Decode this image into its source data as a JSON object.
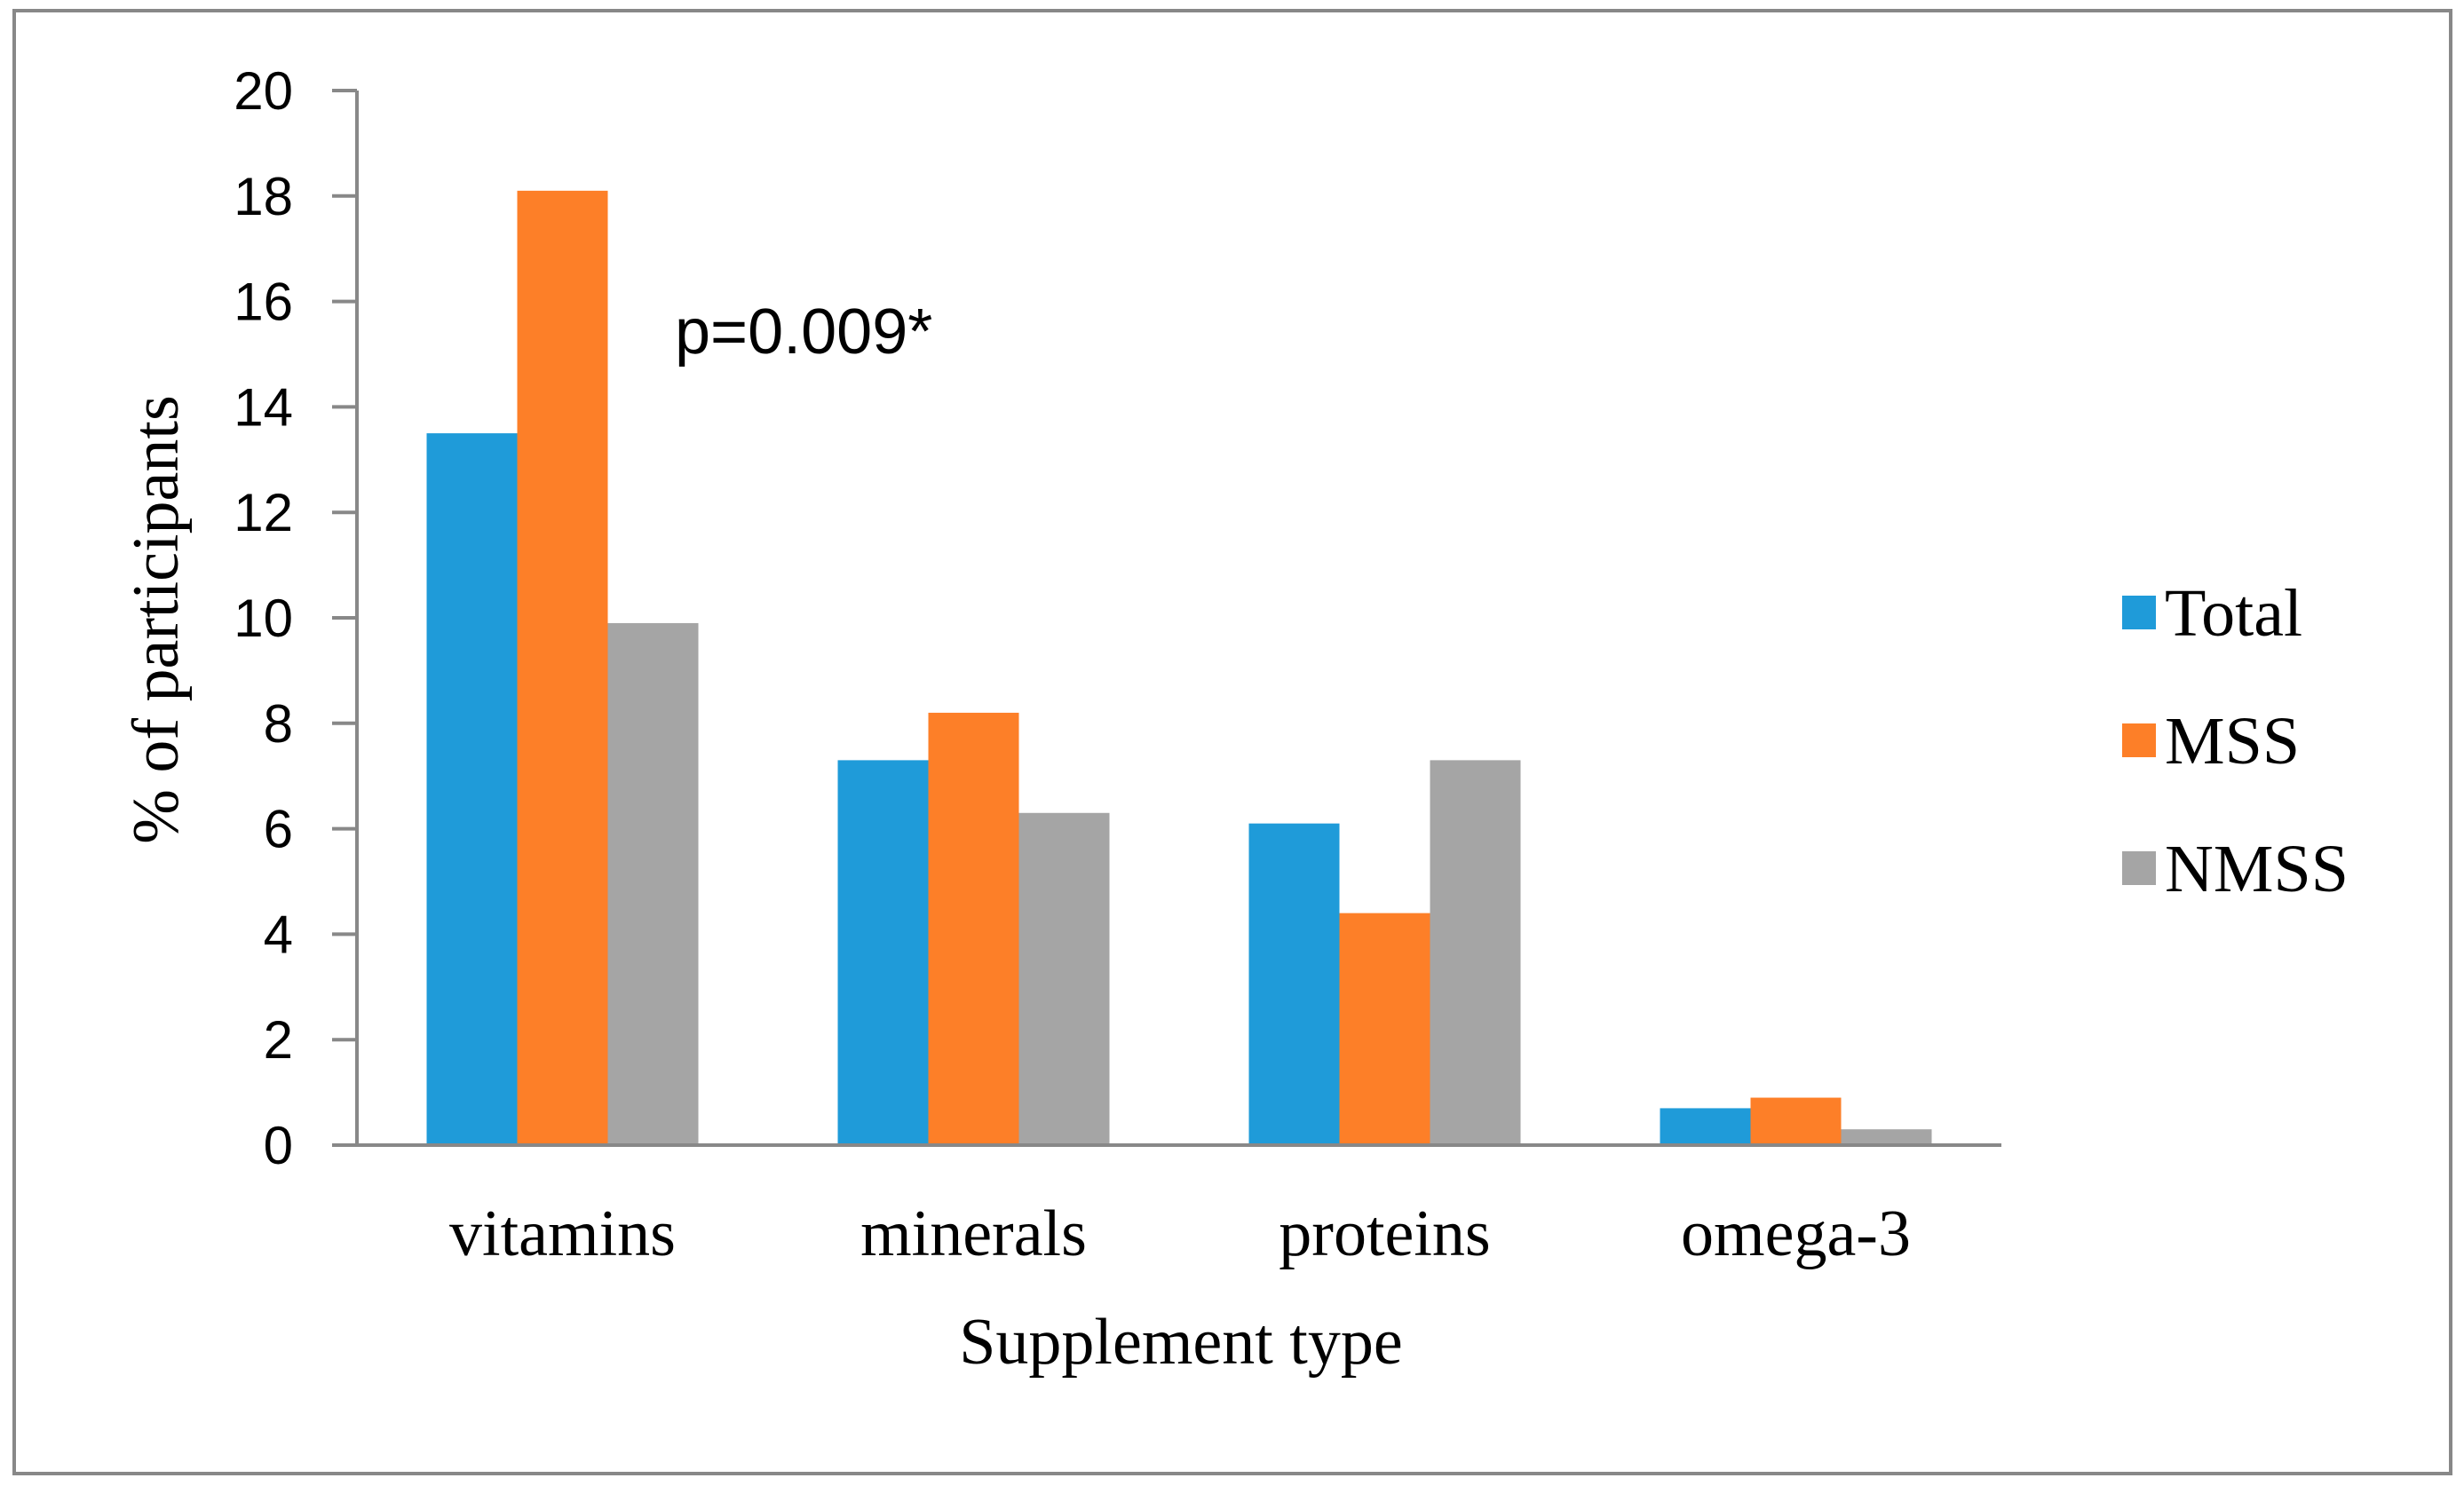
{
  "chart_data": {
    "type": "bar",
    "title": "",
    "xlabel": "Supplement type",
    "ylabel": "% of participants",
    "categories": [
      "vitamins",
      "minerals",
      "proteins",
      "omega-3"
    ],
    "series": [
      {
        "name": "Total",
        "color": "#1f9bd9",
        "values": [
          13.5,
          7.3,
          6.1,
          0.7
        ]
      },
      {
        "name": "MSS",
        "color": "#fd7f28",
        "values": [
          18.1,
          8.2,
          4.4,
          0.9
        ]
      },
      {
        "name": "NMSS",
        "color": "#a5a5a5",
        "values": [
          9.9,
          6.3,
          7.3,
          0.3
        ]
      }
    ],
    "ylim": [
      0,
      20
    ],
    "yticks": [
      "0",
      "2",
      "4",
      "6",
      "8",
      "10",
      "12",
      "14",
      "16",
      "18",
      "20"
    ],
    "grid": false,
    "legend": "right",
    "annotation": "p=0.009*",
    "axis_color": "#888888",
    "border_color": "#888888"
  }
}
